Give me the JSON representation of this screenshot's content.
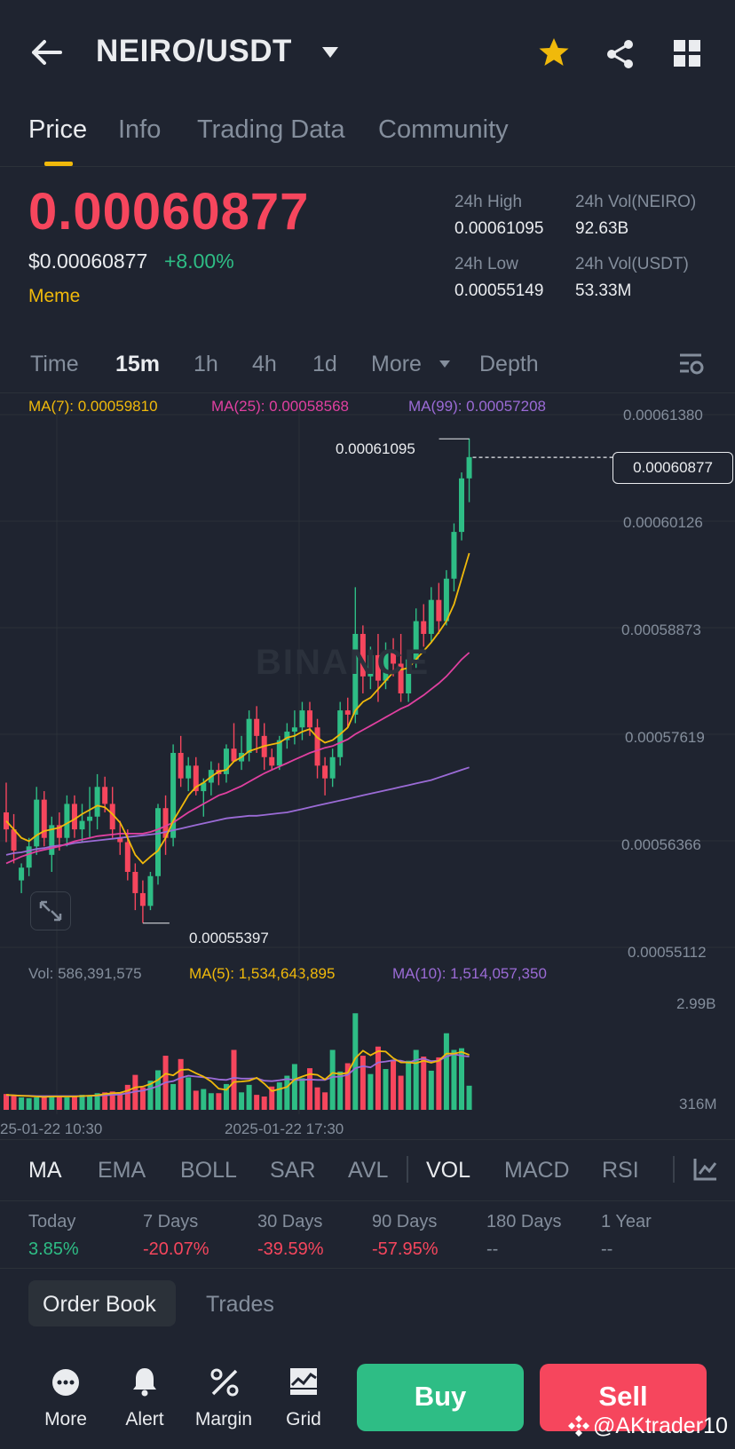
{
  "header": {
    "pair": "NEIRO/USDT",
    "icons": [
      "back-arrow-icon",
      "caret-down-icon",
      "star-icon",
      "share-icon",
      "grid-icon"
    ]
  },
  "tabs": [
    {
      "label": "Price",
      "active": true
    },
    {
      "label": "Info",
      "active": false
    },
    {
      "label": "Trading Data",
      "active": false
    },
    {
      "label": "Community",
      "active": false
    }
  ],
  "ticker": {
    "last_price": "0.00060877",
    "usd_price": "$0.00060877",
    "change_pct": "+8.00%",
    "tag": "Meme",
    "high_label": "24h High",
    "high_value": "0.00061095",
    "low_label": "24h Low",
    "low_value": "0.00055149",
    "vol_base_label": "24h Vol(NEIRO)",
    "vol_base_value": "92.63B",
    "vol_quote_label": "24h Vol(USDT)",
    "vol_quote_value": "53.33M"
  },
  "intervals": [
    {
      "label": "Time",
      "active": false
    },
    {
      "label": "15m",
      "active": true
    },
    {
      "label": "1h",
      "active": false
    },
    {
      "label": "4h",
      "active": false
    },
    {
      "label": "1d",
      "active": false
    },
    {
      "label": "More",
      "active": false
    },
    {
      "label": "Depth",
      "active": false
    }
  ],
  "ma_legend": {
    "ma7": "MA(7): 0.00059810",
    "ma25": "MA(25): 0.00058568",
    "ma99": "MA(99): 0.00057208"
  },
  "colors": {
    "up": "#2ebd85",
    "down": "#f6465d",
    "accent": "#f0b90b",
    "ma7": "#f0b90b",
    "ma25": "#e040a0",
    "ma99": "#9b6bd6"
  },
  "chart_data": {
    "type": "candlestick",
    "y_ticks": [
      "0.00061380",
      "0.00060126",
      "0.00058873",
      "0.00057619",
      "0.00056366",
      "0.00055112"
    ],
    "ylim": [
      0.00055112,
      0.0006138
    ],
    "last_price_tag": "0.00060877",
    "high_marker": "0.00061095",
    "low_marker": "0.00055397",
    "watermark": "BINANCE",
    "x_ticks": [
      "25-01-22 10:30",
      "2025-01-22 17:30"
    ],
    "candles": [
      {
        "o": 0.000567,
        "h": 0.0005705,
        "l": 0.0005635,
        "c": 0.000565
      },
      {
        "o": 0.000565,
        "h": 0.0005668,
        "l": 0.000561,
        "c": 0.0005625
      },
      {
        "o": 0.000559,
        "h": 0.000561,
        "l": 0.0005575,
        "c": 0.0005605
      },
      {
        "o": 0.0005605,
        "h": 0.000564,
        "l": 0.0005595,
        "c": 0.000563
      },
      {
        "o": 0.000563,
        "h": 0.00057,
        "l": 0.000562,
        "c": 0.0005685
      },
      {
        "o": 0.0005685,
        "h": 0.0005695,
        "l": 0.000563,
        "c": 0.000564
      },
      {
        "o": 0.000562,
        "h": 0.0005665,
        "l": 0.00056,
        "c": 0.0005655
      },
      {
        "o": 0.0005655,
        "h": 0.000567,
        "l": 0.0005625,
        "c": 0.000564
      },
      {
        "o": 0.000564,
        "h": 0.000569,
        "l": 0.000563,
        "c": 0.000568
      },
      {
        "o": 0.000568,
        "h": 0.000569,
        "l": 0.000564,
        "c": 0.000565
      },
      {
        "o": 0.000565,
        "h": 0.000568,
        "l": 0.0005635,
        "c": 0.000566
      },
      {
        "o": 0.000566,
        "h": 0.00057,
        "l": 0.000564,
        "c": 0.0005665
      },
      {
        "o": 0.0005665,
        "h": 0.0005715,
        "l": 0.000565,
        "c": 0.00057
      },
      {
        "o": 0.00057,
        "h": 0.0005712,
        "l": 0.000567,
        "c": 0.000568
      },
      {
        "o": 0.000568,
        "h": 0.00057,
        "l": 0.000564,
        "c": 0.000565
      },
      {
        "o": 0.000564,
        "h": 0.000566,
        "l": 0.000562,
        "c": 0.0005635
      },
      {
        "o": 0.0005635,
        "h": 0.000565,
        "l": 0.000559,
        "c": 0.00056
      },
      {
        "o": 0.00056,
        "h": 0.000561,
        "l": 0.0005555,
        "c": 0.0005575
      },
      {
        "o": 0.0005575,
        "h": 0.000559,
        "l": 0.000554,
        "c": 0.000556
      },
      {
        "o": 0.000556,
        "h": 0.00056,
        "l": 0.0005555,
        "c": 0.0005595
      },
      {
        "o": 0.0005595,
        "h": 0.000568,
        "l": 0.0005585,
        "c": 0.0005675
      },
      {
        "o": 0.0005675,
        "h": 0.000569,
        "l": 0.000562,
        "c": 0.000564
      },
      {
        "o": 0.000564,
        "h": 0.000575,
        "l": 0.000563,
        "c": 0.000574
      },
      {
        "o": 0.000574,
        "h": 0.000576,
        "l": 0.00057,
        "c": 0.000571
      },
      {
        "o": 0.000571,
        "h": 0.0005735,
        "l": 0.0005695,
        "c": 0.0005725
      },
      {
        "o": 0.0005725,
        "h": 0.0005735,
        "l": 0.000569,
        "c": 0.0005695
      },
      {
        "o": 0.0005695,
        "h": 0.000571,
        "l": 0.0005665,
        "c": 0.0005705
      },
      {
        "o": 0.0005705,
        "h": 0.000573,
        "l": 0.000569,
        "c": 0.000572
      },
      {
        "o": 0.000572,
        "h": 0.0005728,
        "l": 0.0005702,
        "c": 0.0005715
      },
      {
        "o": 0.0005715,
        "h": 0.000575,
        "l": 0.0005705,
        "c": 0.0005745
      },
      {
        "o": 0.0005745,
        "h": 0.0005775,
        "l": 0.000573,
        "c": 0.000573
      },
      {
        "o": 0.000573,
        "h": 0.000576,
        "l": 0.000572,
        "c": 0.000574
      },
      {
        "o": 0.000574,
        "h": 0.000579,
        "l": 0.000573,
        "c": 0.000578
      },
      {
        "o": 0.000578,
        "h": 0.0005795,
        "l": 0.000574,
        "c": 0.000576
      },
      {
        "o": 0.000576,
        "h": 0.0005775,
        "l": 0.000572,
        "c": 0.0005735
      },
      {
        "o": 0.0005735,
        "h": 0.0005745,
        "l": 0.000572,
        "c": 0.0005725
      },
      {
        "o": 0.0005725,
        "h": 0.000576,
        "l": 0.000572,
        "c": 0.0005755
      },
      {
        "o": 0.0005755,
        "h": 0.0005775,
        "l": 0.0005745,
        "c": 0.0005765
      },
      {
        "o": 0.0005765,
        "h": 0.000579,
        "l": 0.000575,
        "c": 0.000577
      },
      {
        "o": 0.000577,
        "h": 0.00058,
        "l": 0.0005755,
        "c": 0.000579
      },
      {
        "o": 0.000579,
        "h": 0.00058,
        "l": 0.000576,
        "c": 0.000577
      },
      {
        "o": 0.000577,
        "h": 0.000578,
        "l": 0.000571,
        "c": 0.0005725
      },
      {
        "o": 0.0005725,
        "h": 0.0005735,
        "l": 0.000569,
        "c": 0.000571
      },
      {
        "o": 0.000571,
        "h": 0.0005745,
        "l": 0.00057,
        "c": 0.0005735
      },
      {
        "o": 0.0005735,
        "h": 0.00058,
        "l": 0.0005725,
        "c": 0.000579
      },
      {
        "o": 0.000579,
        "h": 0.0005805,
        "l": 0.000577,
        "c": 0.0005785
      },
      {
        "o": 0.0005785,
        "h": 0.0005935,
        "l": 0.0005775,
        "c": 0.000588
      },
      {
        "o": 0.000588,
        "h": 0.000589,
        "l": 0.000581,
        "c": 0.000583
      },
      {
        "o": 0.000583,
        "h": 0.0005865,
        "l": 0.0005815,
        "c": 0.0005855
      },
      {
        "o": 0.0005855,
        "h": 0.000588,
        "l": 0.00058,
        "c": 0.0005825
      },
      {
        "o": 0.0005825,
        "h": 0.000587,
        "l": 0.0005815,
        "c": 0.000586
      },
      {
        "o": 0.000586,
        "h": 0.0005875,
        "l": 0.000583,
        "c": 0.0005845
      },
      {
        "o": 0.0005845,
        "h": 0.000588,
        "l": 0.00058,
        "c": 0.000581
      },
      {
        "o": 0.000581,
        "h": 0.000586,
        "l": 0.00058,
        "c": 0.000585
      },
      {
        "o": 0.000585,
        "h": 0.000591,
        "l": 0.000584,
        "c": 0.0005895
      },
      {
        "o": 0.0005895,
        "h": 0.0005915,
        "l": 0.0005865,
        "c": 0.000588
      },
      {
        "o": 0.000588,
        "h": 0.0005935,
        "l": 0.000587,
        "c": 0.000592
      },
      {
        "o": 0.000592,
        "h": 0.000594,
        "l": 0.000588,
        "c": 0.0005895
      },
      {
        "o": 0.0005895,
        "h": 0.0005955,
        "l": 0.000589,
        "c": 0.0005945
      },
      {
        "o": 0.0005945,
        "h": 0.000601,
        "l": 0.000593,
        "c": 0.0006
      },
      {
        "o": 0.0006,
        "h": 0.000607,
        "l": 0.000599,
        "c": 0.0006063
      },
      {
        "o": 0.0006063,
        "h": 0.000611,
        "l": 0.0006035,
        "c": 0.0006088
      }
    ],
    "ma7": [
      0.000566,
      0.000565,
      0.000564,
      0.0005636,
      0.0005643,
      0.0005648,
      0.000565,
      0.0005652,
      0.0005657,
      0.0005662,
      0.0005668,
      0.0005673,
      0.0005678,
      0.0005676,
      0.0005668,
      0.0005658,
      0.000564,
      0.000562,
      0.000561,
      0.0005618,
      0.0005625,
      0.000564,
      0.000566,
      0.0005675,
      0.000569,
      0.00057,
      0.0005705,
      0.0005712,
      0.0005718,
      0.000572,
      0.000573,
      0.0005735,
      0.0005742,
      0.0005745,
      0.0005748,
      0.000575,
      0.0005752,
      0.0005758,
      0.000576,
      0.0005765,
      0.0005768,
      0.0005758,
      0.0005752,
      0.0005755,
      0.0005762,
      0.000577,
      0.000579,
      0.00058,
      0.0005805,
      0.0005815,
      0.0005825,
      0.0005835,
      0.0005838,
      0.000584,
      0.000585,
      0.000586,
      0.000587,
      0.0005882,
      0.0005895,
      0.0005915,
      0.0005945,
      0.0005975
    ],
    "ma25": [
      0.000561,
      0.0005614,
      0.0005618,
      0.0005621,
      0.0005624,
      0.0005626,
      0.0005628,
      0.000563,
      0.0005633,
      0.0005636,
      0.0005638,
      0.000564,
      0.0005642,
      0.0005643,
      0.0005644,
      0.0005645,
      0.0005645,
      0.0005645,
      0.0005645,
      0.0005647,
      0.000565,
      0.0005654,
      0.0005658,
      0.0005664,
      0.000567,
      0.0005675,
      0.000568,
      0.0005685,
      0.000569,
      0.0005693,
      0.0005697,
      0.0005701,
      0.0005706,
      0.0005711,
      0.0005716,
      0.000572,
      0.0005724,
      0.0005728,
      0.0005732,
      0.0005736,
      0.000574,
      0.0005743,
      0.0005746,
      0.0005748,
      0.0005752,
      0.0005756,
      0.0005762,
      0.0005767,
      0.0005772,
      0.0005777,
      0.0005782,
      0.0005787,
      0.0005792,
      0.0005796,
      0.0005802,
      0.0005808,
      0.0005815,
      0.0005822,
      0.000583,
      0.000584,
      0.000585,
      0.0005858
    ],
    "ma99": [
      0.000562,
      0.0005622,
      0.0005623,
      0.0005625,
      0.0005627,
      0.0005628,
      0.000563,
      0.0005631,
      0.0005632,
      0.0005634,
      0.0005635,
      0.0005636,
      0.0005637,
      0.0005638,
      0.0005639,
      0.000564,
      0.0005641,
      0.0005642,
      0.0005643,
      0.0005644,
      0.0005645,
      0.0005647,
      0.0005649,
      0.0005651,
      0.0005653,
      0.0005655,
      0.0005657,
      0.0005659,
      0.0005661,
      0.0005663,
      0.0005664,
      0.0005665,
      0.0005666,
      0.0005666,
      0.0005667,
      0.0005668,
      0.0005669,
      0.000567,
      0.0005672,
      0.0005674,
      0.0005676,
      0.0005678,
      0.000568,
      0.0005682,
      0.0005684,
      0.0005686,
      0.0005688,
      0.000569,
      0.0005692,
      0.0005694,
      0.0005696,
      0.0005698,
      0.00057,
      0.0005702,
      0.0005704,
      0.0005706,
      0.0005708,
      0.0005711,
      0.0005714,
      0.0005717,
      0.000572,
      0.0005723
    ],
    "volume": {
      "legend_vol": "Vol: 586,391,575",
      "legend_ma5": "MA(5): 1,534,643,895",
      "legend_ma10": "MA(10): 1,514,057,350",
      "y_ticks": [
        "2.99B",
        "316M"
      ],
      "ylim": [
        0,
        3.2
      ],
      "values_b": [
        0.38,
        0.34,
        0.3,
        0.28,
        0.3,
        0.32,
        0.34,
        0.32,
        0.3,
        0.34,
        0.36,
        0.34,
        0.4,
        0.42,
        0.44,
        0.4,
        0.6,
        0.84,
        0.54,
        0.7,
        0.95,
        1.3,
        0.62,
        1.22,
        0.78,
        0.46,
        0.5,
        0.4,
        0.4,
        0.62,
        1.44,
        0.42,
        0.6,
        0.36,
        0.32,
        0.56,
        0.66,
        0.82,
        1.1,
        0.76,
        1.0,
        0.54,
        0.42,
        1.44,
        0.92,
        1.12,
        2.32,
        1.3,
        0.86,
        1.52,
        0.98,
        1.2,
        0.82,
        1.18,
        1.44,
        1.28,
        0.94,
        1.26,
        1.84,
        1.44,
        1.48,
        0.58
      ],
      "ma5_b": [
        0.36,
        0.35,
        0.34,
        0.33,
        0.32,
        0.31,
        0.32,
        0.32,
        0.32,
        0.32,
        0.33,
        0.34,
        0.35,
        0.38,
        0.4,
        0.41,
        0.46,
        0.54,
        0.56,
        0.62,
        0.72,
        0.87,
        0.83,
        0.96,
        0.97,
        0.88,
        0.8,
        0.68,
        0.51,
        0.48,
        0.67,
        0.68,
        0.7,
        0.77,
        0.63,
        0.45,
        0.5,
        0.55,
        0.73,
        0.8,
        0.86,
        0.84,
        0.73,
        0.89,
        0.86,
        0.89,
        1.24,
        1.42,
        1.31,
        1.41,
        1.4,
        1.24,
        1.14,
        1.14,
        1.12,
        1.18,
        1.13,
        1.18,
        1.35,
        1.35,
        1.39,
        1.32
      ],
      "ma10_b": [
        0.35,
        0.35,
        0.34,
        0.34,
        0.33,
        0.33,
        0.33,
        0.33,
        0.33,
        0.33,
        0.33,
        0.34,
        0.34,
        0.35,
        0.36,
        0.37,
        0.4,
        0.44,
        0.46,
        0.51,
        0.57,
        0.66,
        0.69,
        0.77,
        0.82,
        0.8,
        0.78,
        0.76,
        0.73,
        0.72,
        0.77,
        0.75,
        0.75,
        0.76,
        0.7,
        0.69,
        0.71,
        0.74,
        0.72,
        0.72,
        0.73,
        0.72,
        0.72,
        0.79,
        0.8,
        0.84,
        1.0,
        1.05,
        1.02,
        1.14,
        1.16,
        1.19,
        1.18,
        1.13,
        1.2,
        1.23,
        1.17,
        1.18,
        1.28,
        1.34,
        1.3,
        1.28
      ]
    }
  },
  "indicators": [
    {
      "label": "MA",
      "active": true
    },
    {
      "label": "EMA",
      "active": false
    },
    {
      "label": "BOLL",
      "active": false
    },
    {
      "label": "SAR",
      "active": false
    },
    {
      "label": "AVL",
      "active": false
    },
    {
      "label": "VOL",
      "active": true
    },
    {
      "label": "MACD",
      "active": false
    },
    {
      "label": "RSI",
      "active": false
    }
  ],
  "periods": [
    {
      "label": "Today",
      "value": "3.85%",
      "color": "#2ebd85"
    },
    {
      "label": "7 Days",
      "value": "-20.07%",
      "color": "#f6465d"
    },
    {
      "label": "30 Days",
      "value": "-39.59%",
      "color": "#f6465d"
    },
    {
      "label": "90 Days",
      "value": "-57.95%",
      "color": "#f6465d"
    },
    {
      "label": "180 Days",
      "value": "--",
      "color": "#848e9c"
    },
    {
      "label": "1 Year",
      "value": "--",
      "color": "#848e9c"
    }
  ],
  "book_tabs": {
    "order_book": "Order Book",
    "trades": "Trades"
  },
  "bottom_nav": {
    "more": "More",
    "alert": "Alert",
    "margin": "Margin",
    "grid": "Grid",
    "buy": "Buy",
    "sell": "Sell"
  },
  "watermark_user": "@AKtrader10"
}
